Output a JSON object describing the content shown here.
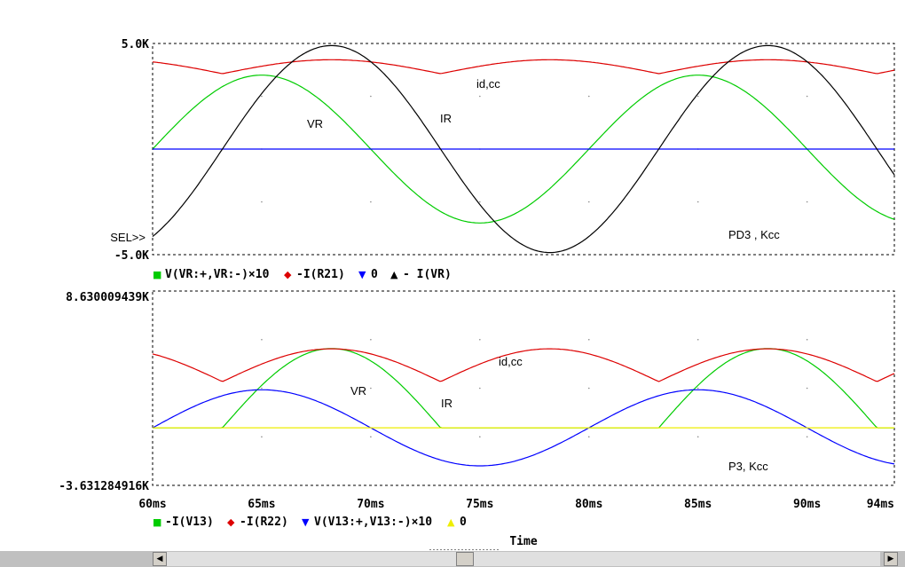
{
  "chart_data": [
    {
      "type": "line",
      "title": "",
      "xlabel": "Time",
      "xlim": [
        60,
        94
      ],
      "y_top_label": "5.0K",
      "y_bottom_label": "-5.0K",
      "ylim": [
        -5000,
        5000
      ],
      "sel_marker": "SEL>>",
      "series": [
        {
          "name": "V(VR:+,VR:-)×10",
          "color": "#00cc00",
          "marker": "■",
          "amp": 3500,
          "period_ms": 20,
          "phase_ms": 0,
          "kind": "sine"
        },
        {
          "name": "-I(R21)",
          "color": "#dd0000",
          "marker": "◆",
          "base": 3900,
          "amp": 1100,
          "period_ms": 20,
          "phase_ms": 3.2,
          "kind": "rectified"
        },
        {
          "name": "0",
          "color": "#0000ff",
          "marker": "▼",
          "kind": "zero"
        },
        {
          "name": "- I(VR)",
          "color": "#000000",
          "marker": "▲",
          "amp": 4900,
          "period_ms": 20,
          "phase_ms": 3.2,
          "kind": "sine"
        }
      ],
      "annotations": [
        "id,cc",
        "VR",
        "IR",
        "PD3 , Kcc"
      ]
    },
    {
      "type": "line",
      "title": "",
      "xlabel": "Time",
      "xlim": [
        60,
        94
      ],
      "y_top_label": "8.630009439K",
      "y_bottom_label": "-3.631284916K",
      "ylim": [
        -3631.284916,
        8630.009439
      ],
      "series": [
        {
          "name": "-I(V13)",
          "color": "#00cc00",
          "marker": "■",
          "amp": 5000,
          "period_ms": 20,
          "phase_ms": 3.2,
          "kind": "halfwave"
        },
        {
          "name": "-I(R22)",
          "color": "#dd0000",
          "marker": "◆",
          "base": 3950,
          "amp": 3450,
          "period_ms": 20,
          "phase_ms": 3.2,
          "kind": "rectified"
        },
        {
          "name": "V(V13:+,V13:-)×10",
          "color": "#0000ff",
          "marker": "▼",
          "amp": 2400,
          "period_ms": 20,
          "phase_ms": 0,
          "kind": "sine"
        },
        {
          "name": "0",
          "color": "#eeee00",
          "marker": "▲",
          "kind": "zero"
        }
      ],
      "annotations": [
        "id,cc",
        "VR",
        "IR",
        "P3, Kcc"
      ]
    }
  ],
  "x_ticks": [
    {
      "v": 60,
      "label": "60ms"
    },
    {
      "v": 65,
      "label": "65ms"
    },
    {
      "v": 70,
      "label": "70ms"
    },
    {
      "v": 75,
      "label": "75ms"
    },
    {
      "v": 80,
      "label": "80ms"
    },
    {
      "v": 85,
      "label": "85ms"
    },
    {
      "v": 90,
      "label": "90ms"
    },
    {
      "v": 94,
      "label": "94ms"
    }
  ],
  "scrollbar": {
    "left_arrow": "◀",
    "right_arrow": "▶"
  }
}
